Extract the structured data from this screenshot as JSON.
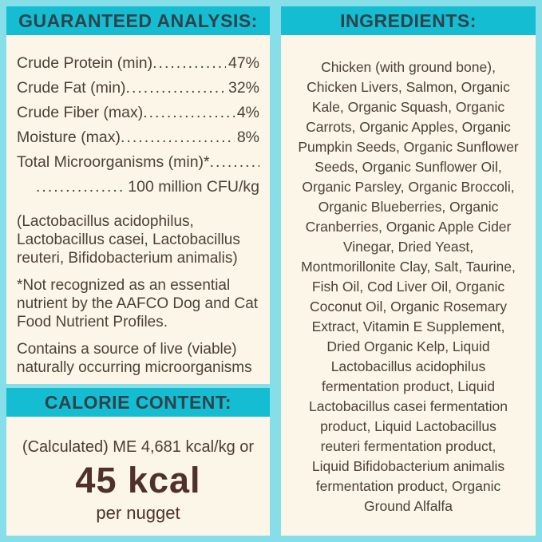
{
  "colors": {
    "background_teal": "#86dfe8",
    "header_teal": "#15bdd3",
    "panel_cream": "#fbf6e7",
    "header_text": "#2f434b",
    "body_text": "#4d4038",
    "calorie_brown": "#4f3129"
  },
  "guaranteed_analysis": {
    "title": "GUARANTEED ANALYSIS:",
    "leader_dots": "................................................................",
    "rows": [
      {
        "label": "Crude Protein (min)",
        "value": "47%"
      },
      {
        "label": "Crude Fat (min)",
        "value": "32%"
      },
      {
        "label": "Crude Fiber (max)",
        "value": "4%"
      },
      {
        "label": "Moisture (max)",
        "value": "8%"
      }
    ],
    "micro": {
      "label": "Total Microorganisms (min)*",
      "value": "100 million CFU/kg"
    },
    "notes": [
      {
        "lines": [
          "(Lactobacillus acidophilus,",
          "Lactobacillus casei, Lactobacillus",
          "reuteri, Bifidobacterium animalis)"
        ]
      },
      {
        "lines": [
          "*Not recognized as an essential",
          "nutrient by the AAFCO Dog and Cat",
          "Food Nutrient Profiles."
        ]
      },
      {
        "lines": [
          "Contains a source of live (viable)",
          "naturally occurring microorganisms"
        ]
      }
    ]
  },
  "calorie_content": {
    "title": "CALORIE CONTENT:",
    "calc_line": "(Calculated) ME 4,681 kcal/kg or",
    "big_value": "45 kcal",
    "unit_line": "per nugget"
  },
  "ingredients": {
    "title": "INGREDIENTS:",
    "full_text": "Chicken (with ground bone), Chicken Livers, Salmon, Organic Kale, Organic Squash, Organic Carrots, Organic Apples, Organic Pumpkin Seeds, Organic Sunflower Seeds, Organic Sunflower Oil, Organic Parsley, Organic Broccoli, Organic Blueberries, Organic Cranberries, Organic Apple Cider Vinegar, Dried Yeast, Montmorillonite Clay, Salt, Taurine, Fish Oil, Cod Liver Oil, Organic Coconut Oil, Organic Rosemary Extract, Vitamin E Supplement, Dried Organic Kelp, Liquid Lactobacillus acidophilus fermentation product, Liquid Lactobacillus casei fermentation product, Liquid Lactobacillus reuteri fermentation product, Liquid Bifidobacterium animalis fermentation product, Organic Ground Alfalfa",
    "lines": [
      "Chicken (with ground bone),",
      "Chicken Livers, Salmon, Organic",
      "Kale, Organic Squash, Organic",
      "Carrots, Organic Apples, Organic",
      "Pumpkin Seeds, Organic Sunflower",
      "Seeds, Organic Sunflower Oil,",
      "Organic Parsley, Organic Broccoli,",
      "Organic Blueberries, Organic",
      "Cranberries, Organic Apple Cider",
      "Vinegar, Dried Yeast,",
      "Montmorillonite Clay, Salt, Taurine,",
      "Fish Oil, Cod Liver Oil, Organic",
      "Coconut Oil, Organic Rosemary",
      "Extract, Vitamin E Supplement,",
      "Dried Organic Kelp, Liquid",
      "Lactobacillus acidophilus",
      "fermentation product, Liquid",
      "Lactobacillus casei fermentation",
      "product, Liquid Lactobacillus",
      "reuteri fermentation product,",
      "Liquid Bifidobacterium animalis",
      "fermentation product, Organic",
      "Ground Alfalfa"
    ]
  }
}
